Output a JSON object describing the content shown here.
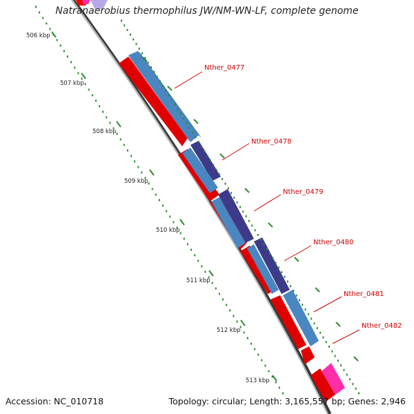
{
  "title": "Natranaerobius thermophilus JW/NM-WN-LF, complete genome",
  "footer": {
    "accession": "Accession: NC_010718",
    "summary": "Topology: circular; Length: 3,165,557 bp; Genes: 2,946"
  },
  "colors": {
    "backbone": "#7a7a7a",
    "forward_feature": "#ff0000",
    "gene_bar": "#4a7fb0",
    "gene_bar_alt": "#3d3a8a",
    "pink_feature": "#ff2ea8",
    "lilac_feature": "#b8a8e8",
    "ruler_dots": "#2e8b2e",
    "label": "#cc0000"
  },
  "ruler": {
    "unit": "kbp",
    "ticks": [
      {
        "position_kbp": 506,
        "label": "506 kbp"
      },
      {
        "position_kbp": 507,
        "label": "507 kbp"
      },
      {
        "position_kbp": 508,
        "label": "508 kbp"
      },
      {
        "position_kbp": 509,
        "label": "509 kbp"
      },
      {
        "position_kbp": 510,
        "label": "510 kbp"
      },
      {
        "position_kbp": 511,
        "label": "511 kbp"
      },
      {
        "position_kbp": 512,
        "label": "512 kbp"
      },
      {
        "position_kbp": 513,
        "label": "513 kbp"
      }
    ]
  },
  "genes": [
    {
      "label": "Nther_0477"
    },
    {
      "label": "Nther_0478"
    },
    {
      "label": "Nther_0479"
    },
    {
      "label": "Nther_0480"
    },
    {
      "label": "Nther_0481"
    },
    {
      "label": "Nther_0482"
    }
  ]
}
